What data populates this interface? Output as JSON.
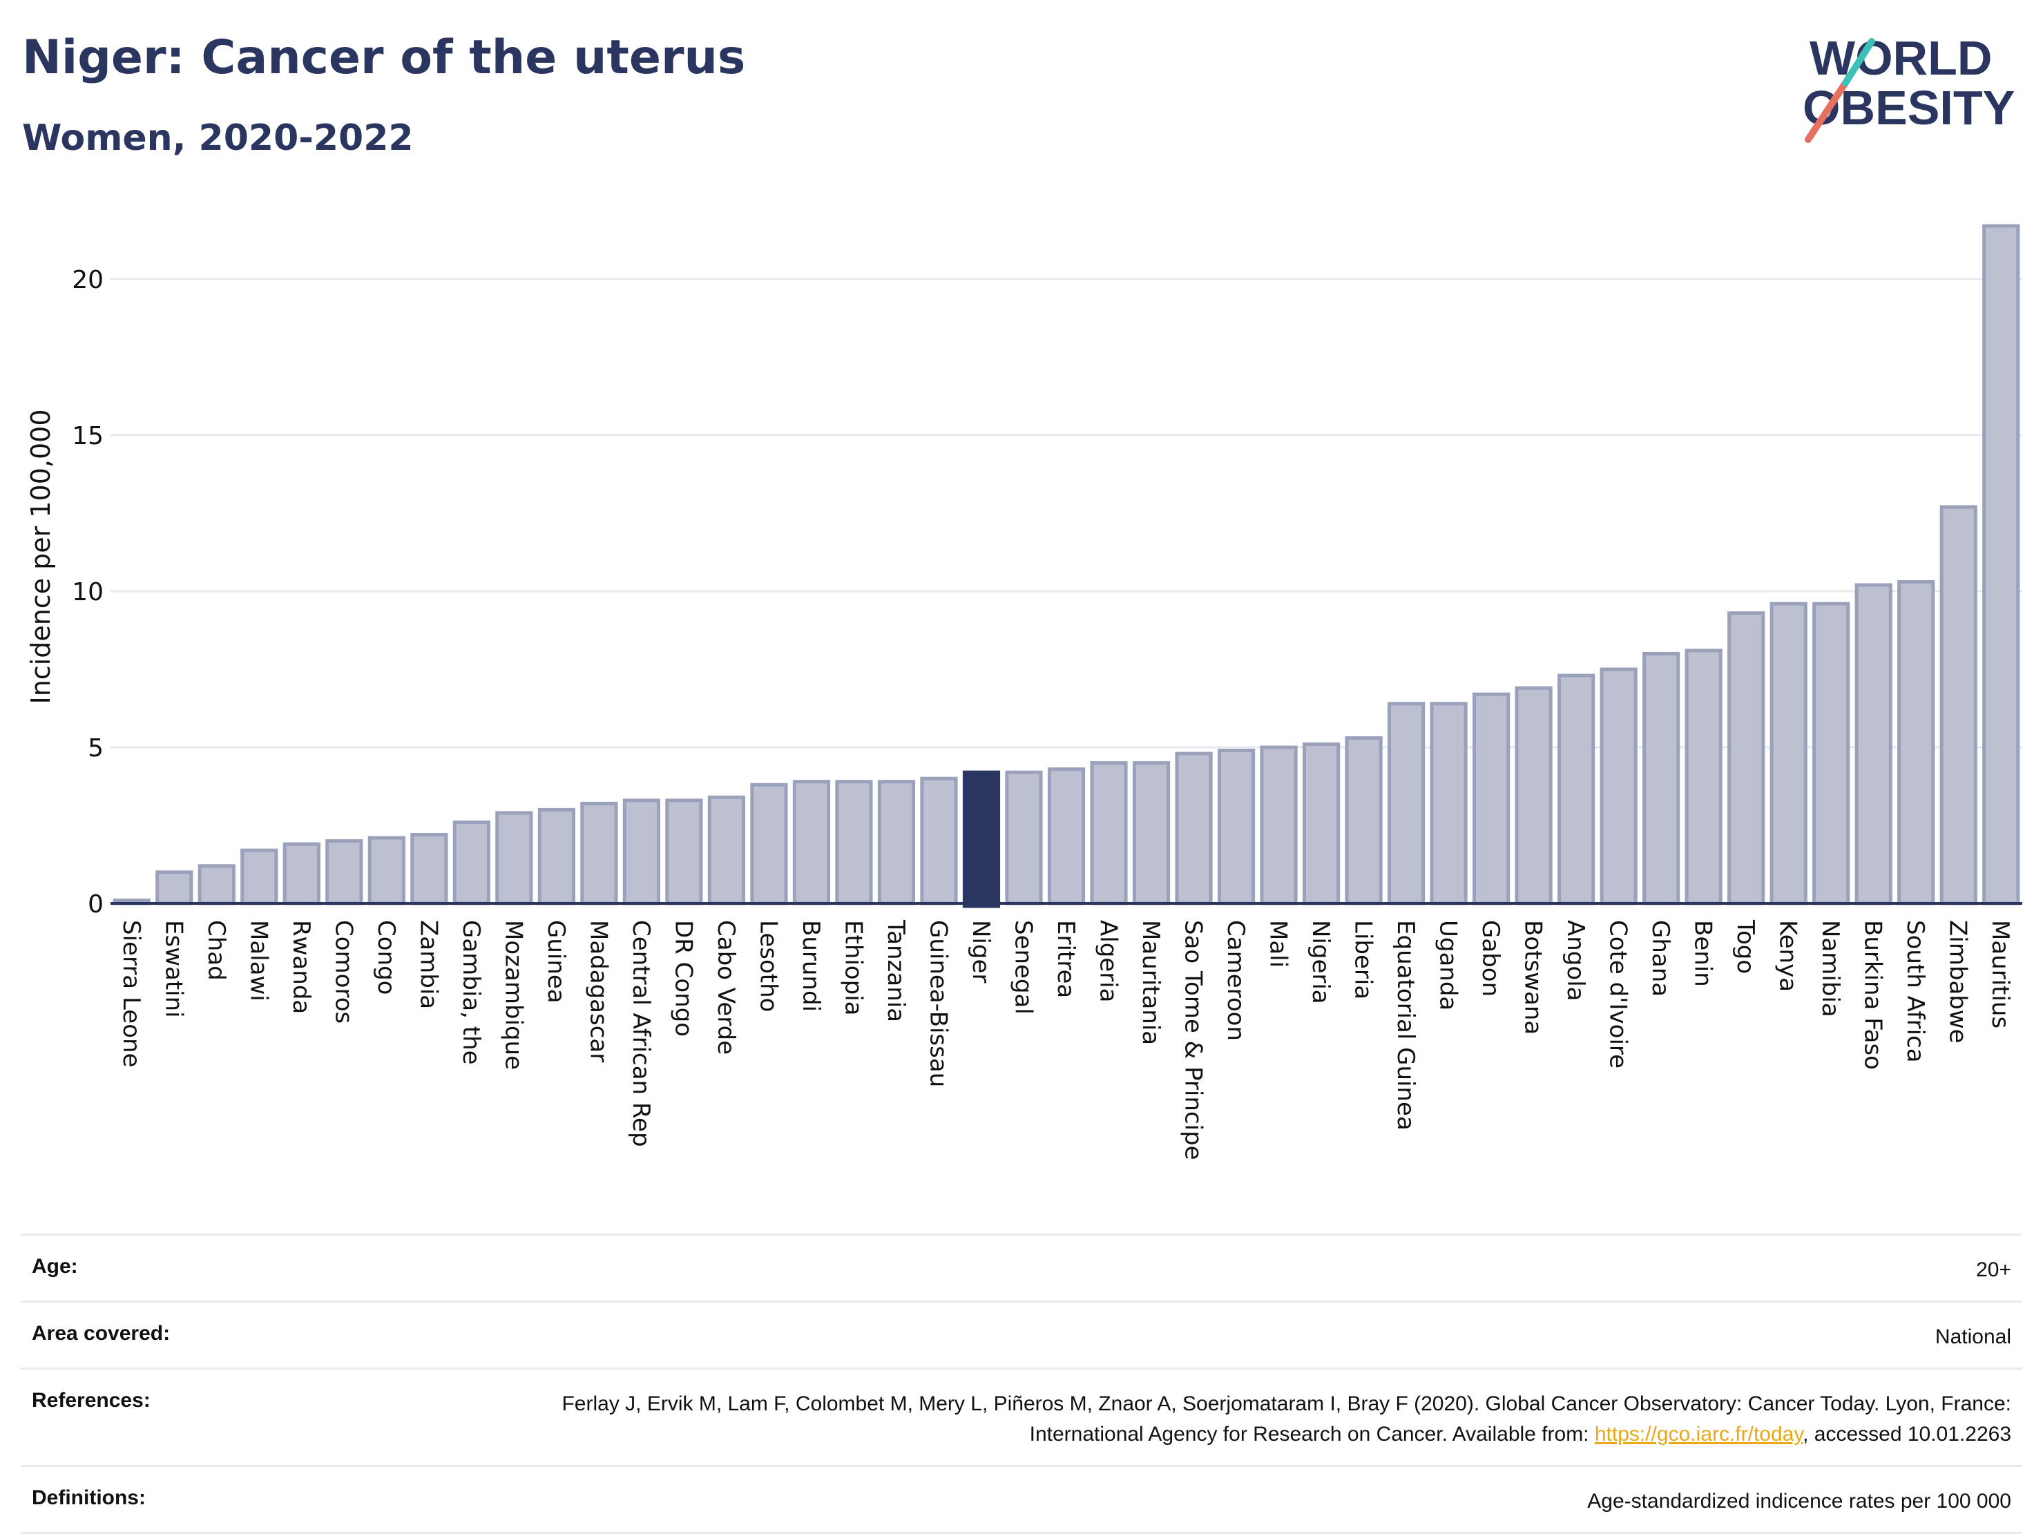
{
  "header": {
    "title": "Niger: Cancer of the uterus",
    "subtitle": "Women, 2020-2022"
  },
  "logo": {
    "line1": "WORLD",
    "line2": "OBESITY"
  },
  "colors": {
    "bar": "#bcc0d0",
    "bar_stroke": "#9aa1bb",
    "highlight": "#2a3560",
    "grid": "#e6e8ee",
    "axis": "#2a3560",
    "text": "#2a3560"
  },
  "chart_data": {
    "type": "bar",
    "ylabel": "Incidence per 100,000",
    "xlabel": "",
    "ylim": [
      0,
      22
    ],
    "yticks": [
      0,
      5,
      10,
      15,
      20
    ],
    "grid": true,
    "highlight": "Niger",
    "categories": [
      "Sierra Leone",
      "Eswatini",
      "Chad",
      "Malawi",
      "Rwanda",
      "Comoros",
      "Congo",
      "Zambia",
      "Gambia, the",
      "Mozambique",
      "Guinea",
      "Madagascar",
      "Central African Rep",
      "DR Congo",
      "Cabo Verde",
      "Lesotho",
      "Burundi",
      "Ethiopia",
      "Tanzania",
      "Guinea-Bissau",
      "Niger",
      "Senegal",
      "Eritrea",
      "Algeria",
      "Mauritania",
      "Sao Tome & Principe",
      "Cameroon",
      "Mali",
      "Nigeria",
      "Liberia",
      "Equatorial Guinea",
      "Uganda",
      "Gabon",
      "Botswana",
      "Angola",
      "Cote d'Ivoire",
      "Ghana",
      "Benin",
      "Togo",
      "Kenya",
      "Namibia",
      "Burkina Faso",
      "South Africa",
      "Zimbabwe",
      "Mauritius"
    ],
    "values": [
      0.1,
      1.0,
      1.2,
      1.7,
      1.9,
      2.0,
      2.1,
      2.2,
      2.6,
      2.9,
      3.0,
      3.2,
      3.3,
      3.3,
      3.4,
      3.8,
      3.9,
      3.9,
      3.9,
      4.0,
      4.2,
      4.2,
      4.3,
      4.5,
      4.5,
      4.8,
      4.9,
      5.0,
      5.1,
      5.3,
      6.4,
      6.4,
      6.7,
      6.9,
      7.3,
      7.5,
      8.0,
      8.1,
      9.3,
      9.6,
      9.6,
      10.2,
      10.3,
      12.7,
      21.7
    ]
  },
  "meta": {
    "age_label": "Age:",
    "age_value": "20+",
    "area_label": "Area covered:",
    "area_value": "National",
    "references_label": "References:",
    "references_text_1": "Ferlay J, Ervik M, Lam F, Colombet M, Mery L, Piñeros M, Znaor A, Soerjomataram I, Bray F (2020). Global Cancer Observatory: Cancer Today. Lyon, France: International Agency for Research on Cancer. Available from: ",
    "references_link": "https://gco.iarc.fr/today",
    "references_text_2": ", accessed 10.01.2263",
    "definitions_label": "Definitions:",
    "definitions_value": "Age-standardized indicence rates per 100 000"
  }
}
